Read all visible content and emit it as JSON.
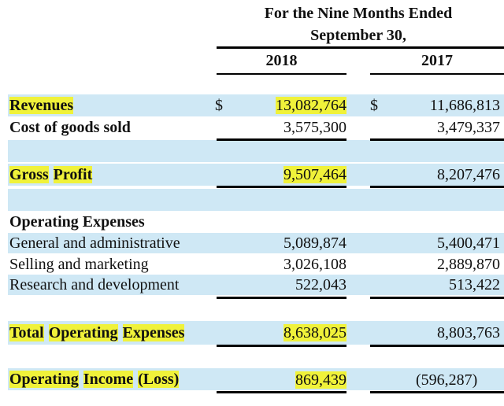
{
  "header": {
    "line1": "For the Nine Months Ended",
    "line2": "September 30,",
    "col_2018": "2018",
    "col_2017": "2017"
  },
  "currency": "$",
  "rows": {
    "revenues": {
      "label_words": [
        "Revenues"
      ],
      "v2018": "13,082,764",
      "v2017": "11,686,813"
    },
    "cogs": {
      "label": "Cost of goods sold",
      "v2018": "3,575,300",
      "v2017": "3,479,337"
    },
    "gross_profit": {
      "label_words": [
        "Gross",
        "Profit"
      ],
      "v2018": "9,507,464",
      "v2017": "8,207,476"
    },
    "opex_header": {
      "label": "Operating Expenses"
    },
    "ga": {
      "label": "General and administrative",
      "v2018": "5,089,874",
      "v2017": "5,400,471"
    },
    "sm": {
      "label": "Selling and marketing",
      "v2018": "3,026,108",
      "v2017": "2,889,870"
    },
    "rd": {
      "label": "Research and development",
      "v2018": "522,043",
      "v2017": "513,422"
    },
    "total_opex": {
      "label_words": [
        "Total",
        "Operating",
        "Expenses"
      ],
      "v2018": "8,638,025",
      "v2017": "8,803,763"
    },
    "op_income": {
      "label_words": [
        "Operating",
        "Income",
        "(Loss)"
      ],
      "v2018": "869,439",
      "v2017": "(596,287)"
    }
  },
  "colors": {
    "band": "#cfe8f5",
    "highlight": "#f0f23a"
  }
}
